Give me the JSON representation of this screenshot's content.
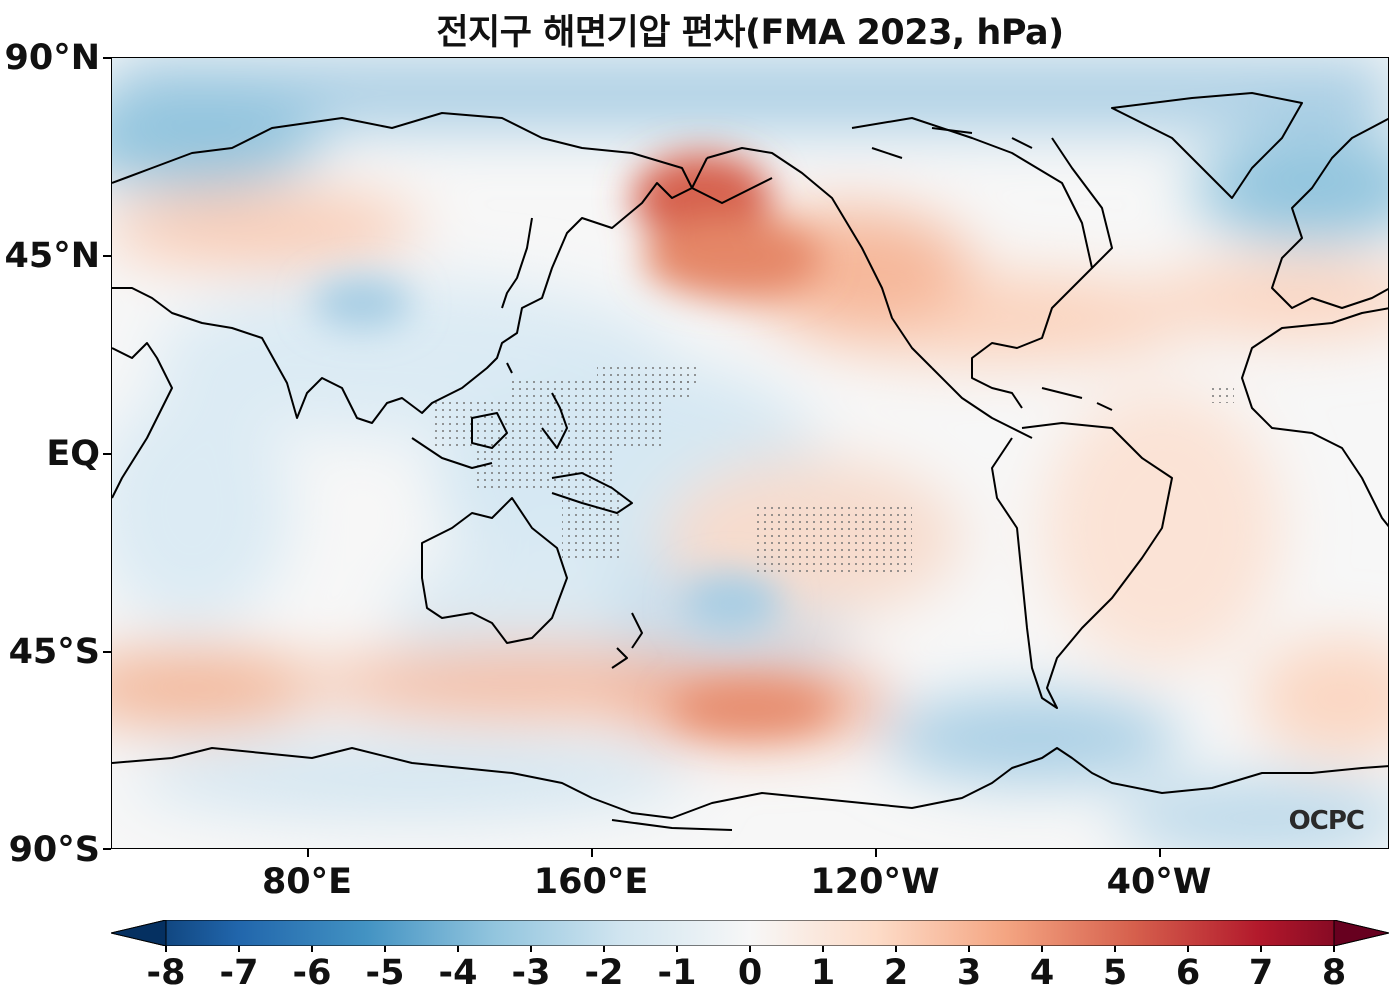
{
  "title": "전지구 해면기압 편차(FMA 2023, hPa)",
  "logo_text": "OCPC",
  "lat_labels": [
    "90°N",
    "45°N",
    "EQ",
    "45°S",
    "90°S"
  ],
  "lon_labels": [
    "80°E",
    "160°E",
    "120°W",
    "40°W"
  ],
  "colorbar": {
    "min": -8,
    "max": 8,
    "colormap": "RdBu_r",
    "ticks": [
      "-8",
      "-7",
      "-6",
      "-5",
      "-4",
      "-3",
      "-2",
      "-1",
      "0",
      "1",
      "2",
      "3",
      "4",
      "5",
      "6",
      "7",
      "8"
    ],
    "colors": [
      "#053061",
      "#2166ac",
      "#4393c3",
      "#92c5de",
      "#d1e5f0",
      "#f7f7f7",
      "#fddbc7",
      "#f4a582",
      "#d6604d",
      "#b2182b",
      "#67001f"
    ]
  },
  "map": {
    "projection": "equirectangular",
    "central_longitude": "180°",
    "background_color": "#f7f7f7",
    "coastline_color": "#000000"
  }
}
